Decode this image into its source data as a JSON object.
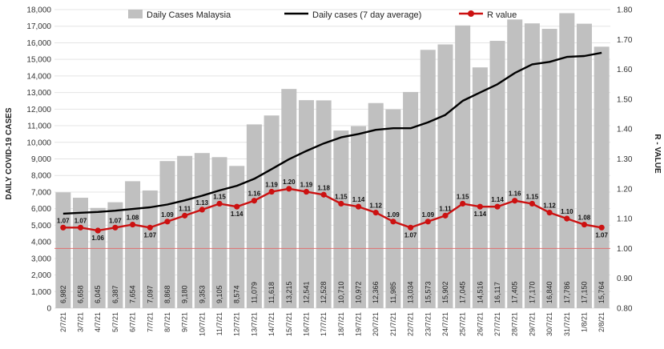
{
  "chart_data": {
    "type": "bar",
    "categories": [
      "2/7/21",
      "3/7/21",
      "4/7/21",
      "5/7/21",
      "6/7/21",
      "7/7/21",
      "8/7/21",
      "9/7/21",
      "10/7/21",
      "11/7/21",
      "12/7/21",
      "13/7/21",
      "14/7/21",
      "15/7/21",
      "16/7/21",
      "17/7/21",
      "18/7/21",
      "19/7/21",
      "20/7/21",
      "21/7/21",
      "22/7/21",
      "23/7/21",
      "24/7/21",
      "25/7/21",
      "26/7/21",
      "27/7/21",
      "28/7/21",
      "29/7/21",
      "30/7/21",
      "31/7/21",
      "1/8/21",
      "2/8/21"
    ],
    "bar_labels": [
      "6,982",
      "6,658",
      "6,045",
      "6,387",
      "7,654",
      "7,097",
      "8,868",
      "9,180",
      "9,353",
      "9,105",
      "8,574",
      "11,079",
      "11,618",
      "13,215",
      "12,541",
      "12,528",
      "10,710",
      "10,972",
      "12,366",
      "11,985",
      "13,034",
      "15,573",
      "15,902",
      "17,045",
      "14,516",
      "16,117",
      "17,405",
      "17,170",
      "16,840",
      "17,786",
      "17,150",
      "15,764"
    ],
    "series": [
      {
        "name": "Daily Cases Malaysia",
        "kind": "bar",
        "axis": "left",
        "color": "#c0c0c0",
        "values": [
          6982,
          6658,
          6045,
          6387,
          7654,
          7097,
          8868,
          9180,
          9353,
          9105,
          8574,
          11079,
          11618,
          13215,
          12541,
          12528,
          10710,
          10972,
          12366,
          11985,
          13034,
          15573,
          15902,
          17045,
          14516,
          16117,
          17405,
          17170,
          16840,
          17786,
          17150,
          15764
        ]
      },
      {
        "name": "Daily cases (7 day average)",
        "kind": "line",
        "axis": "left",
        "color": "#000000",
        "values": [
          5700,
          5750,
          5800,
          5880,
          5980,
          6080,
          6250,
          6500,
          6780,
          7100,
          7380,
          7800,
          8380,
          8980,
          9480,
          9930,
          10300,
          10500,
          10750,
          10850,
          10850,
          11200,
          11650,
          12500,
          13000,
          13500,
          14180,
          14700,
          14850,
          15150,
          15200,
          15400
        ]
      },
      {
        "name": "R value",
        "kind": "line",
        "axis": "right",
        "color": "#cc1111",
        "values": [
          1.07,
          1.07,
          1.06,
          1.07,
          1.08,
          1.07,
          1.09,
          1.11,
          1.13,
          1.15,
          1.14,
          1.16,
          1.19,
          1.2,
          1.19,
          1.18,
          1.15,
          1.14,
          1.12,
          1.09,
          1.07,
          1.09,
          1.11,
          1.15,
          1.14,
          1.14,
          1.16,
          1.15,
          1.12,
          1.1,
          1.08,
          1.07
        ],
        "labels": [
          "1.07",
          "1.07",
          "1.06",
          "1.07",
          "1.08",
          "1.07",
          "1.09",
          "1.11",
          "1.13",
          "1.15",
          "1.14",
          "1.16",
          "1.19",
          "1.20",
          "1.19",
          "1.18",
          "1.15",
          "1.14",
          "1.12",
          "1.09",
          "1.07",
          "1.09",
          "1.11",
          "1.15",
          "1.14",
          "1.14",
          "1.16",
          "1.15",
          "1.12",
          "1.10",
          "1.08",
          "1.07"
        ]
      }
    ],
    "reference_line": {
      "axis": "right",
      "value": 1.0,
      "color": "#e07070"
    },
    "ylabel": "DAILY COVID-19 CASES",
    "ylabel_right": "R - VALUE",
    "ylim": [
      0,
      18000
    ],
    "ylim_right": [
      0.8,
      1.8
    ],
    "yticks": [
      "0",
      "1,000",
      "2,000",
      "3,000",
      "4,000",
      "5,000",
      "6,000",
      "7,000",
      "8,000",
      "9,000",
      "10,000",
      "11,000",
      "12,000",
      "13,000",
      "14,000",
      "15,000",
      "16,000",
      "17,000",
      "18,000"
    ],
    "yticks_right": [
      "0.80",
      "0.90",
      "1.00",
      "1.10",
      "1.20",
      "1.30",
      "1.40",
      "1.50",
      "1.60",
      "1.70",
      "1.80"
    ],
    "legend_position": "top"
  }
}
